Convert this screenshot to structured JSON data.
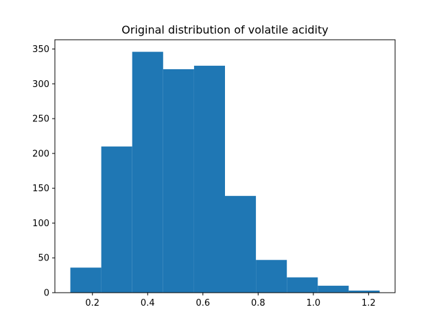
{
  "chart_data": {
    "type": "histogram",
    "title": "Original distribution of volatile acidity",
    "xlabel": "",
    "ylabel": "",
    "bin_edges": [
      0.12,
      0.232,
      0.344,
      0.456,
      0.568,
      0.68,
      0.792,
      0.904,
      1.016,
      1.128,
      1.24
    ],
    "counts": [
      36,
      210,
      346,
      321,
      326,
      139,
      47,
      22,
      10,
      3
    ],
    "xlim": [
      0.064,
      1.296
    ],
    "ylim": [
      0,
      363.3
    ],
    "xticks": [
      0.2,
      0.4,
      0.6,
      0.8,
      1.0,
      1.2
    ],
    "xtick_labels": [
      "0.2",
      "0.4",
      "0.6",
      "0.8",
      "1.0",
      "1.2"
    ],
    "yticks": [
      0,
      50,
      100,
      150,
      200,
      250,
      300,
      350
    ],
    "ytick_labels": [
      "0",
      "50",
      "100",
      "150",
      "200",
      "250",
      "300",
      "350"
    ],
    "bar_color": "#1f77b4",
    "grid": false,
    "legend": "none"
  }
}
